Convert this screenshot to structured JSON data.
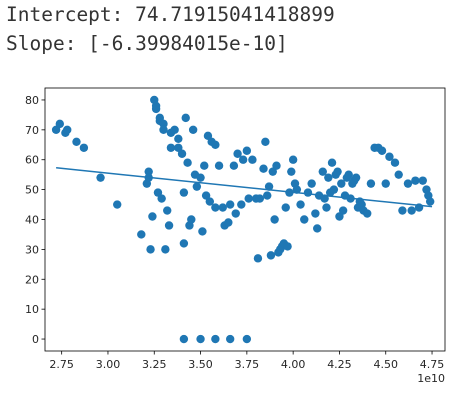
{
  "output": {
    "intercept_line": "Intercept: 74.71915041418899",
    "slope_line": "Slope: [-6.39984015e-10]"
  },
  "chart_data": {
    "type": "scatter",
    "title": "",
    "xlabel": "",
    "ylabel": "",
    "x_offset_label": "1e10",
    "xlim": [
      2.66,
      4.82
    ],
    "ylim": [
      -4,
      84
    ],
    "x_ticks": [
      2.75,
      3.0,
      3.25,
      3.5,
      3.75,
      4.0,
      4.25,
      4.5,
      4.75
    ],
    "x_tick_labels": [
      "2.75",
      "3.00",
      "3.25",
      "3.50",
      "3.75",
      "4.00",
      "4.25",
      "4.50",
      "4.75"
    ],
    "y_ticks": [
      0,
      10,
      20,
      30,
      40,
      50,
      60,
      70,
      80
    ],
    "y_tick_labels": [
      "0",
      "10",
      "20",
      "30",
      "40",
      "50",
      "60",
      "70",
      "80"
    ],
    "grid": false,
    "point_color": "#1f77b4",
    "line_color": "#1f77b4",
    "fit_line": {
      "x": [
        2.72,
        4.75
      ],
      "y": [
        57.3,
        44.3
      ]
    },
    "points": {
      "x": [
        2.72,
        2.74,
        2.77,
        2.78,
        2.83,
        2.87,
        2.96,
        3.05,
        3.18,
        3.21,
        3.22,
        3.22,
        3.23,
        3.24,
        3.25,
        3.26,
        3.26,
        3.27,
        3.28,
        3.28,
        3.29,
        3.3,
        3.3,
        3.31,
        3.32,
        3.33,
        3.34,
        3.34,
        3.36,
        3.38,
        3.38,
        3.4,
        3.41,
        3.41,
        3.42,
        3.43,
        3.44,
        3.45,
        3.46,
        3.47,
        3.48,
        3.5,
        3.51,
        3.52,
        3.53,
        3.54,
        3.55,
        3.56,
        3.58,
        3.58,
        3.6,
        3.62,
        3.63,
        3.65,
        3.66,
        3.68,
        3.69,
        3.7,
        3.72,
        3.73,
        3.75,
        3.76,
        3.78,
        3.8,
        3.81,
        3.82,
        3.84,
        3.85,
        3.86,
        3.87,
        3.88,
        3.89,
        3.9,
        3.91,
        3.92,
        3.93,
        3.94,
        3.95,
        3.96,
        3.97,
        3.98,
        3.99,
        4.0,
        4.01,
        4.02,
        4.04,
        4.06,
        4.08,
        4.1,
        4.12,
        4.13,
        4.14,
        4.16,
        4.17,
        4.18,
        4.19,
        4.2,
        4.21,
        4.22,
        4.23,
        4.24,
        4.25,
        4.26,
        4.27,
        4.28,
        4.29,
        4.3,
        4.31,
        4.32,
        4.33,
        4.34,
        4.35,
        4.36,
        4.37,
        4.38,
        4.4,
        4.42,
        4.44,
        4.46,
        4.48,
        4.5,
        4.52,
        4.55,
        4.57,
        4.59,
        4.62,
        4.64,
        4.66,
        4.68,
        4.7,
        4.72,
        4.73,
        4.74,
        3.41,
        3.5,
        3.58,
        3.66,
        3.75
      ],
      "y": [
        70,
        72,
        69,
        70,
        66,
        64,
        54,
        45,
        35,
        52,
        56,
        54,
        30,
        41,
        80,
        77,
        78,
        49,
        74,
        73,
        47,
        72,
        70,
        30,
        43,
        38,
        69,
        64,
        70,
        64,
        67,
        62,
        49,
        32,
        74,
        59,
        38,
        40,
        70,
        55,
        51,
        54,
        36,
        58,
        48,
        68,
        46,
        66,
        44,
        65,
        58,
        44,
        38,
        39,
        45,
        58,
        42,
        62,
        45,
        60,
        63,
        47,
        60,
        47,
        27,
        47,
        57,
        66,
        48,
        51,
        28,
        56,
        40,
        58,
        29,
        30,
        31,
        32,
        44,
        31,
        49,
        56,
        60,
        52,
        50,
        45,
        40,
        49,
        52,
        42,
        37,
        48,
        56,
        47,
        44,
        54,
        49,
        59,
        50,
        55,
        56,
        41,
        52,
        43,
        48,
        54,
        55,
        47,
        52,
        53,
        54,
        44,
        46,
        45,
        43,
        42,
        52,
        64,
        64,
        63,
        52,
        61,
        59,
        55,
        43,
        52,
        43,
        53,
        44,
        53,
        50,
        48,
        46,
        0,
        0,
        0,
        0,
        0
      ]
    }
  }
}
